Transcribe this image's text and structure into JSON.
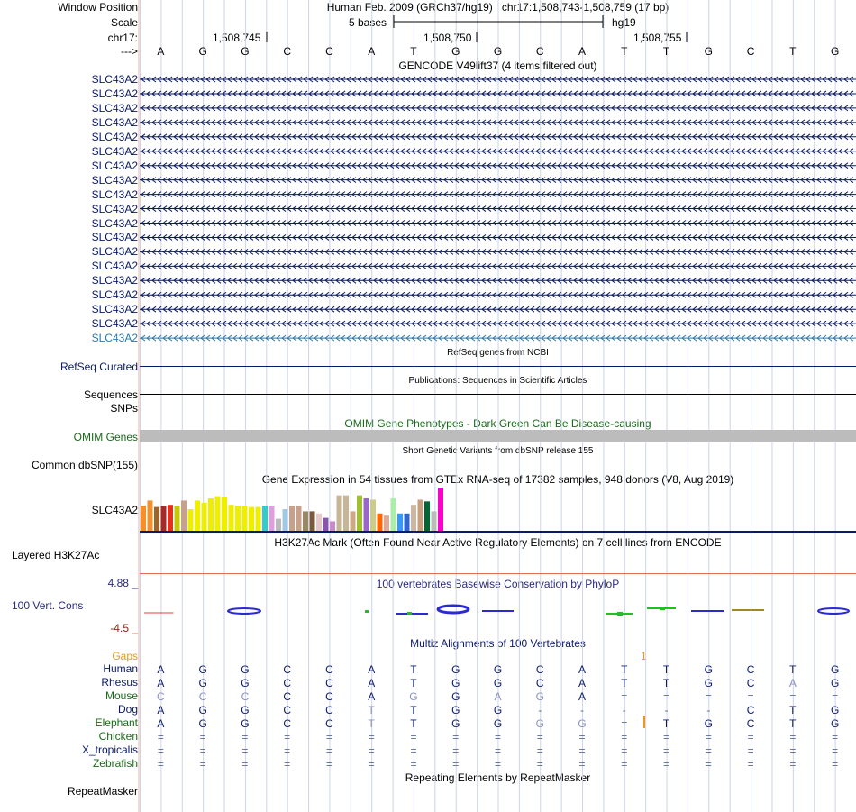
{
  "header": {
    "window_position_label": "Window Position",
    "scale_label": "Scale",
    "chrom_label": "chr17:",
    "strand_label": "--->",
    "assembly": "Human Feb. 2009 (GRCh37/hg19)",
    "position": "chr17:1,508,743-1,508,759 (17 bp)",
    "scale_text": "5 bases",
    "db": "hg19",
    "ruler_ticks": [
      "1,508,745",
      "1,508,750",
      "1,508,755"
    ]
  },
  "bases": [
    "A",
    "G",
    "G",
    "C",
    "C",
    "A",
    "T",
    "G",
    "G",
    "C",
    "A",
    "T",
    "T",
    "G",
    "C",
    "T",
    "G"
  ],
  "gencode": {
    "title": "GENCODE V49lift37 (4 items filtered out)",
    "rows": [
      "SLC43A2",
      "SLC43A2",
      "SLC43A2",
      "SLC43A2",
      "SLC43A2",
      "SLC43A2",
      "SLC43A2",
      "SLC43A2",
      "SLC43A2",
      "SLC43A2",
      "SLC43A2",
      "SLC43A2",
      "SLC43A2",
      "SLC43A2",
      "SLC43A2",
      "SLC43A2",
      "SLC43A2",
      "SLC43A2",
      "SLC43A2"
    ]
  },
  "refseq": {
    "title": "RefSeq genes from NCBI",
    "label": "RefSeq Curated"
  },
  "publications": {
    "title": "Publications: Sequences in Scientific Articles",
    "label1": "Sequences",
    "label2": "SNPs"
  },
  "omim": {
    "title": "OMIM Gene Phenotypes - Dark Green Can Be Disease-causing",
    "label": "OMIM Genes"
  },
  "dbsnp": {
    "title": "Short Genetic Variants from dbSNP release 155",
    "label": "Common dbSNP(155)"
  },
  "gtex": {
    "title": "Gene Expression in 54 tissues from GTEx RNA-seq of 17382 samples, 948 donors (V8, Aug 2019)",
    "label": "SLC43A2",
    "bars": [
      {
        "h": 0.58,
        "c": "#f58f2c"
      },
      {
        "h": 0.7,
        "c": "#f58f2c"
      },
      {
        "h": 0.55,
        "c": "#a0642a"
      },
      {
        "h": 0.58,
        "c": "#a52a2a"
      },
      {
        "h": 0.6,
        "c": "#e0301e"
      },
      {
        "h": 0.58,
        "c": "#c8c800"
      },
      {
        "h": 0.7,
        "c": "#c8a08c"
      },
      {
        "h": 0.5,
        "c": "#eeee00"
      },
      {
        "h": 0.7,
        "c": "#eeee00"
      },
      {
        "h": 0.65,
        "c": "#eeee00"
      },
      {
        "h": 0.75,
        "c": "#eeee00"
      },
      {
        "h": 0.8,
        "c": "#eeee00"
      },
      {
        "h": 0.78,
        "c": "#eeee00"
      },
      {
        "h": 0.6,
        "c": "#eeee00"
      },
      {
        "h": 0.58,
        "c": "#eeee00"
      },
      {
        "h": 0.58,
        "c": "#eeee00"
      },
      {
        "h": 0.55,
        "c": "#eeee00"
      },
      {
        "h": 0.55,
        "c": "#eeee00"
      },
      {
        "h": 0.58,
        "c": "#33cccc"
      },
      {
        "h": 0.58,
        "c": "#dda0dd"
      },
      {
        "h": 0.28,
        "c": "#bbbbbb"
      },
      {
        "h": 0.5,
        "c": "#a0c8e8"
      },
      {
        "h": 0.58,
        "c": "#c8a08c"
      },
      {
        "h": 0.58,
        "c": "#c8a08c"
      },
      {
        "h": 0.45,
        "c": "#998866"
      },
      {
        "h": 0.45,
        "c": "#7a5a3a"
      },
      {
        "h": 0.4,
        "c": "#e8c8c8"
      },
      {
        "h": 0.3,
        "c": "#8855aa"
      },
      {
        "h": 0.22,
        "c": "#cc88cc"
      },
      {
        "h": 0.82,
        "c": "#c8b496"
      },
      {
        "h": 0.82,
        "c": "#c8b496"
      },
      {
        "h": 0.45,
        "c": "#ccaa88"
      },
      {
        "h": 0.82,
        "c": "#a0c030"
      },
      {
        "h": 0.75,
        "c": "#9966cc"
      },
      {
        "h": 0.72,
        "c": "#cccc88"
      },
      {
        "h": 0.4,
        "c": "#ff6600"
      },
      {
        "h": 0.35,
        "c": "#ddaa99"
      },
      {
        "h": 0.75,
        "c": "#aaeeaa"
      },
      {
        "h": 0.4,
        "c": "#3399ff"
      },
      {
        "h": 0.4,
        "c": "#3366cc"
      },
      {
        "h": 0.6,
        "c": "#ccb8a0"
      },
      {
        "h": 0.72,
        "c": "#c8a080"
      },
      {
        "h": 0.68,
        "c": "#006633"
      },
      {
        "h": 0.45,
        "c": "#bbbbbb"
      },
      {
        "h": 1.0,
        "c": "#ff00cc"
      }
    ]
  },
  "h3k27ac": {
    "title": "H3K27Ac Mark (Often Found Near Active Regulatory Elements) on 7 cell lines from ENCODE",
    "label": "Layered H3K27Ac"
  },
  "phylop": {
    "title": "100 vertebrates Basewise Conservation by PhyloP",
    "label": "100 Vert. Cons",
    "max": "4.88 _",
    "min": "-4.5 _"
  },
  "multiz": {
    "title": "Multiz Alignments of 100 Vertebrates",
    "gaps_label": "Gaps",
    "gap_count": "1",
    "species": [
      {
        "name": "Human",
        "color": "#0a1a6a",
        "seq": [
          "A",
          "G",
          "G",
          "C",
          "C",
          "A",
          "T",
          "G",
          "G",
          "C",
          "A",
          "T",
          "T",
          "G",
          "C",
          "T",
          "G"
        ]
      },
      {
        "name": "Rhesus",
        "color": "#0a1a6a",
        "seq": [
          "A",
          "G",
          "G",
          "C",
          "C",
          "A",
          "T",
          "G",
          "G",
          "C",
          "A",
          "T",
          "T",
          "G",
          "C",
          "A",
          "G"
        ]
      },
      {
        "name": "Mouse",
        "color": "#1a6a1a",
        "seq": [
          "C",
          "C",
          "C",
          "C",
          "C",
          "A",
          "G",
          "G",
          "A",
          "G",
          "A",
          "=",
          "=",
          "=",
          "=",
          "=",
          "="
        ]
      },
      {
        "name": "Dog",
        "color": "#0a1a6a",
        "seq": [
          "A",
          "G",
          "G",
          "C",
          "C",
          "T",
          "T",
          "G",
          "G",
          "-",
          "-",
          "-",
          "-",
          "-",
          "C",
          "T",
          "G"
        ]
      },
      {
        "name": "Elephant",
        "color": "#1a6a1a",
        "seq": [
          "A",
          "G",
          "G",
          "C",
          "C",
          "T",
          "T",
          "G",
          "G",
          "G",
          "G",
          "=",
          "T",
          "G",
          "C",
          "T",
          "G"
        ]
      },
      {
        "name": "Chicken",
        "color": "#1a6a1a",
        "seq": [
          "=",
          "=",
          "=",
          "=",
          "=",
          "=",
          "=",
          "=",
          "=",
          "=",
          "=",
          "=",
          "=",
          "=",
          "=",
          "=",
          "="
        ]
      },
      {
        "name": "X_tropicalis",
        "color": "#0a1a6a",
        "seq": [
          "=",
          "=",
          "=",
          "=",
          "=",
          "=",
          "=",
          "=",
          "=",
          "=",
          "=",
          "=",
          "=",
          "=",
          "=",
          "=",
          "="
        ]
      },
      {
        "name": "Zebrafish",
        "color": "#1a6a1a",
        "seq": [
          "=",
          "=",
          "=",
          "=",
          "=",
          "=",
          "=",
          "=",
          "=",
          "=",
          "=",
          "=",
          "=",
          "=",
          "=",
          "=",
          "="
        ]
      }
    ]
  },
  "repeatmasker": {
    "title": "Repeating Elements by RepeatMasker",
    "label": "RepeatMasker"
  }
}
